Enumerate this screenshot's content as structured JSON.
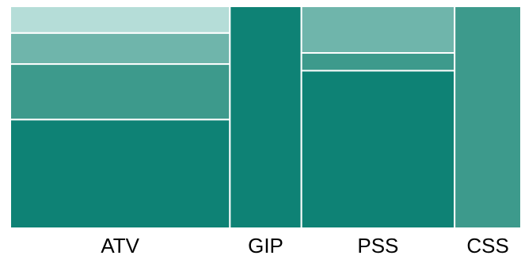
{
  "chart_data": {
    "type": "mosaic",
    "categories": [
      "ATV",
      "GIP",
      "PSS",
      "CSS"
    ],
    "widths": [
      43,
      14,
      30,
      13
    ],
    "segments": [
      [
        {
          "value": 49,
          "color": "#0e8275"
        },
        {
          "value": 25,
          "color": "#3d9a8c"
        },
        {
          "value": 14,
          "color": "#6fb5ab"
        },
        {
          "value": 12,
          "color": "#b5ddd8"
        }
      ],
      [
        {
          "value": 100,
          "color": "#0e8275"
        }
      ],
      [
        {
          "value": 71,
          "color": "#0e8275"
        },
        {
          "value": 8,
          "color": "#3d9a8c"
        },
        {
          "value": 21,
          "color": "#6fb5ab"
        }
      ],
      [
        {
          "value": 100,
          "color": "#3d9a8c"
        }
      ]
    ]
  }
}
